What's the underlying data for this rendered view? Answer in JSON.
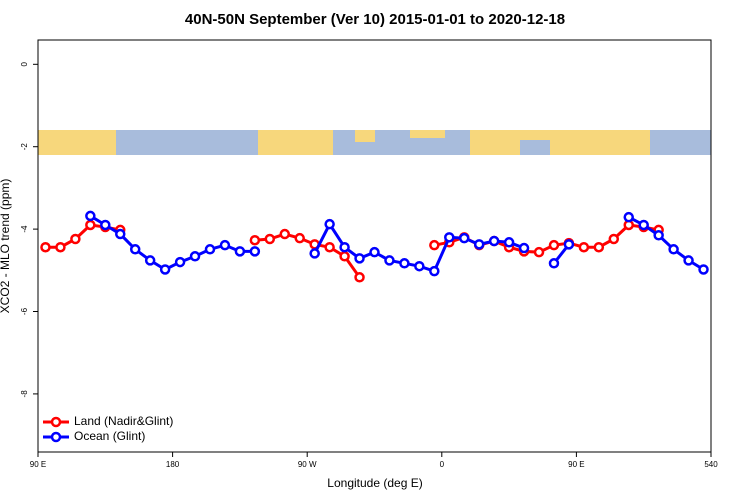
{
  "chart_data": {
    "type": "line",
    "title": "40N-50N September (Ver 10)   2015-01-01 to 2020-12-18",
    "x_label": "Longitude (deg E)",
    "y_label": "XCO2 - MLO trend (ppm)",
    "x": [
      95,
      105,
      115,
      125,
      135,
      145,
      155,
      165,
      175,
      185,
      195,
      205,
      215,
      225,
      235,
      245,
      255,
      265,
      275,
      285,
      295,
      305,
      315,
      325,
      335,
      345,
      355,
      365,
      375,
      385,
      395,
      405,
      415,
      425,
      435,
      445,
      455,
      465,
      475,
      485,
      495,
      505,
      515,
      525,
      535
    ],
    "series": [
      {
        "name": "Land (Nadir&Glint)",
        "color": "#ff0000",
        "values": [
          -4.44,
          -4.44,
          -4.24,
          -3.9,
          -3.95,
          -4.02,
          null,
          null,
          null,
          null,
          null,
          null,
          null,
          null,
          -4.27,
          -4.24,
          -4.12,
          -4.22,
          -4.37,
          -4.44,
          -4.66,
          -5.17,
          null,
          null,
          null,
          null,
          -4.39,
          -4.32,
          -4.2,
          -4.39,
          -4.29,
          -4.44,
          -4.54,
          -4.56,
          -4.39,
          -4.34,
          -4.44,
          -4.44,
          -4.24,
          -3.9,
          -3.95,
          -4.02,
          null,
          null,
          null
        ]
      },
      {
        "name": "Ocean (Glint)",
        "color": "#0000ff",
        "values": [
          null,
          null,
          null,
          -3.68,
          -3.9,
          -4.12,
          -4.49,
          -4.76,
          -4.98,
          -4.8,
          -4.66,
          -4.49,
          -4.39,
          -4.54,
          -4.54,
          null,
          null,
          null,
          -4.59,
          -3.88,
          -4.44,
          -4.71,
          -4.56,
          -4.76,
          -4.83,
          -4.9,
          -5.02,
          -4.2,
          -4.22,
          -4.37,
          -4.29,
          -4.32,
          -4.46,
          null,
          -4.83,
          -4.37,
          null,
          null,
          null,
          -3.71,
          -3.9,
          -4.15,
          -4.49,
          -4.76,
          -4.98
        ]
      }
    ],
    "xlim": [
      90,
      540
    ],
    "xticks": [
      {
        "value": 90,
        "label": "90 E"
      },
      180,
      {
        "value": 270,
        "label": "90 W"
      },
      {
        "value": 360,
        "label": "0"
      },
      {
        "value": 450,
        "label": "90 E"
      },
      540
    ],
    "ylim": [
      -9.41,
      0.59
    ],
    "yticks": [
      0,
      -2,
      -4,
      -6,
      -8
    ],
    "legend": "bottom-left"
  }
}
